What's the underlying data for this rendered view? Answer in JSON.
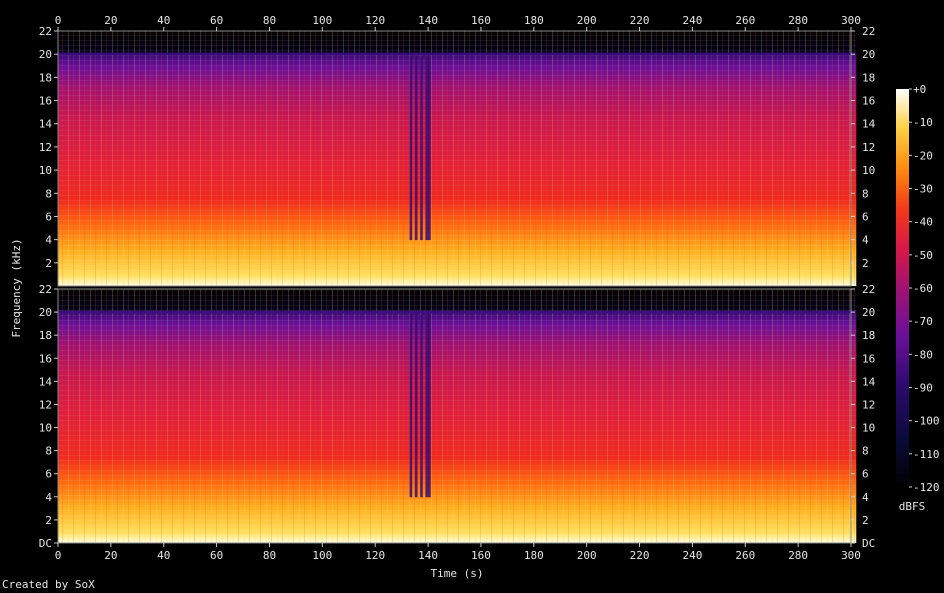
{
  "credit": "Created by SoX",
  "chart_data": {
    "type": "heatmap",
    "title": "",
    "xlabel": "Time (s)",
    "ylabel": "Frequency (kHz)",
    "xlim": [
      0,
      300
    ],
    "ylim": [
      0,
      22
    ],
    "x_ticks": [
      0,
      20,
      40,
      60,
      80,
      100,
      120,
      140,
      160,
      180,
      200,
      220,
      240,
      260,
      280,
      300
    ],
    "y_ticks": [
      "DC",
      2,
      4,
      6,
      8,
      10,
      12,
      14,
      16,
      18,
      20,
      22
    ],
    "channels": 2,
    "duration_s": 302,
    "colorbar": {
      "label": "dBFS",
      "ticks": [
        "+0",
        "-10",
        "-20",
        "-30",
        "-40",
        "-50",
        "-60",
        "-70",
        "-80",
        "-90",
        "-100",
        "-110",
        "-120"
      ],
      "range": [
        -120,
        0
      ]
    },
    "dropout_regions_s": [
      [
        133,
        134
      ],
      [
        135,
        136
      ],
      [
        137,
        138
      ],
      [
        139,
        141
      ]
    ],
    "spectral_cutoff_khz": 20
  }
}
